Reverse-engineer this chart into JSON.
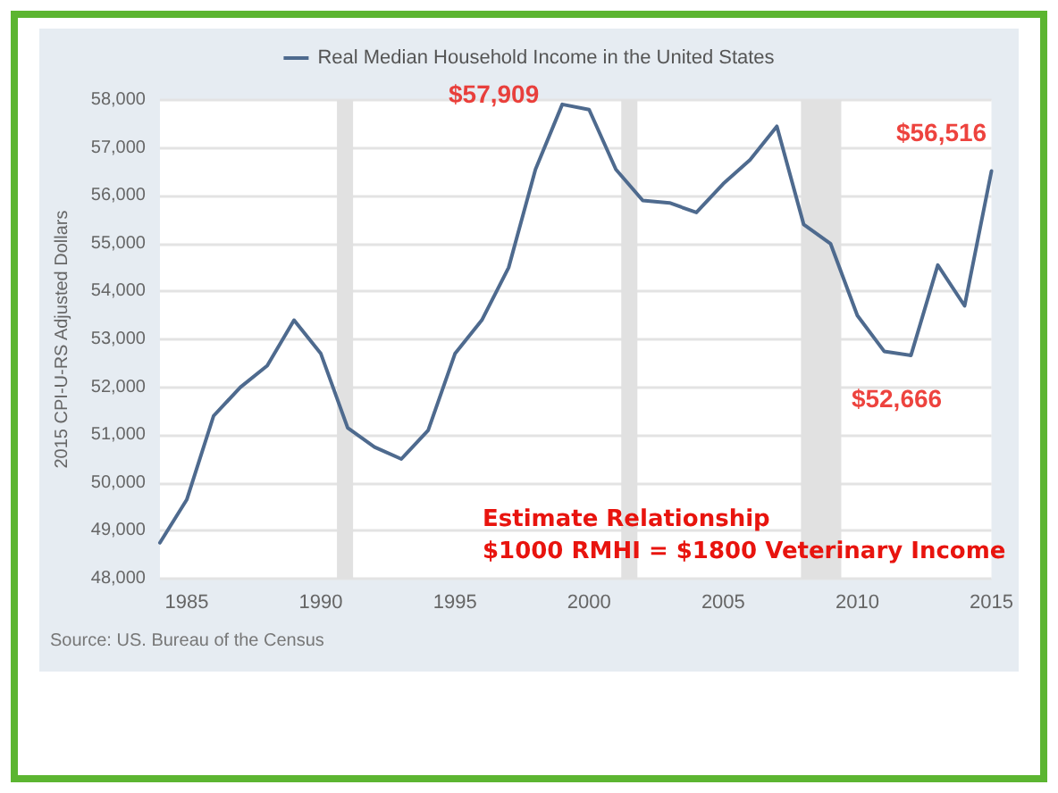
{
  "chart_data": {
    "type": "line",
    "ylabel": "2015 CPI-U-RS Adjusted Dollars",
    "x": [
      1984,
      1985,
      1986,
      1987,
      1988,
      1989,
      1990,
      1991,
      1992,
      1993,
      1994,
      1995,
      1996,
      1997,
      1998,
      1999,
      2000,
      2001,
      2002,
      2003,
      2004,
      2005,
      2006,
      2007,
      2008,
      2009,
      2010,
      2011,
      2012,
      2013,
      2014,
      2015
    ],
    "series": [
      {
        "name": "Real Median Household Income in the United States",
        "color": "#4e6a8e",
        "values": [
          48750,
          49650,
          51400,
          52000,
          52450,
          53400,
          52700,
          51150,
          50750,
          50500,
          51100,
          52700,
          53400,
          54500,
          56550,
          57909,
          57800,
          56550,
          55900,
          55850,
          55650,
          56250,
          56750,
          57450,
          55400,
          55000,
          53500,
          52750,
          52666,
          54550,
          53700,
          56516
        ]
      }
    ],
    "xlim": [
      1984,
      2015
    ],
    "xticks": [
      1985,
      1990,
      1995,
      2000,
      2005,
      2010,
      2015
    ],
    "ylim": [
      48000,
      58000
    ],
    "yticks": [
      {
        "value": 48000,
        "label": "48,000"
      },
      {
        "value": 49000,
        "label": "49,000"
      },
      {
        "value": 50000,
        "label": "50,000"
      },
      {
        "value": 51000,
        "label": "51,000"
      },
      {
        "value": 52000,
        "label": "52,000"
      },
      {
        "value": 53000,
        "label": "53,000"
      },
      {
        "value": 54000,
        "label": "54,000"
      },
      {
        "value": 55000,
        "label": "55,000"
      },
      {
        "value": 56000,
        "label": "56,000"
      },
      {
        "value": 57000,
        "label": "57,000"
      },
      {
        "value": 58000,
        "label": "58,000"
      }
    ],
    "bands": [
      {
        "axis": "x",
        "from": 1990.6,
        "to": 1991.2,
        "color": "#e1e1e1"
      },
      {
        "axis": "x",
        "from": 2001.2,
        "to": 2001.8,
        "color": "#e1e1e1"
      },
      {
        "axis": "x",
        "from": 2007.9,
        "to": 2009.4,
        "color": "#e1e1e1"
      }
    ],
    "annotations": [
      {
        "text": "$57,909",
        "x": 1999,
        "y": 57909
      },
      {
        "text": "$56,516",
        "x": 2015,
        "y": 56516
      },
      {
        "text": "$52,666",
        "x": 2012,
        "y": 52666
      },
      "Estimate Relationship\n$1000 RMHI = $1800 Veterinary Income",
      "Source: US. Bureau of the Census"
    ],
    "grid": "y",
    "legend": "top",
    "marker": "none",
    "line_style": "solid"
  }
}
